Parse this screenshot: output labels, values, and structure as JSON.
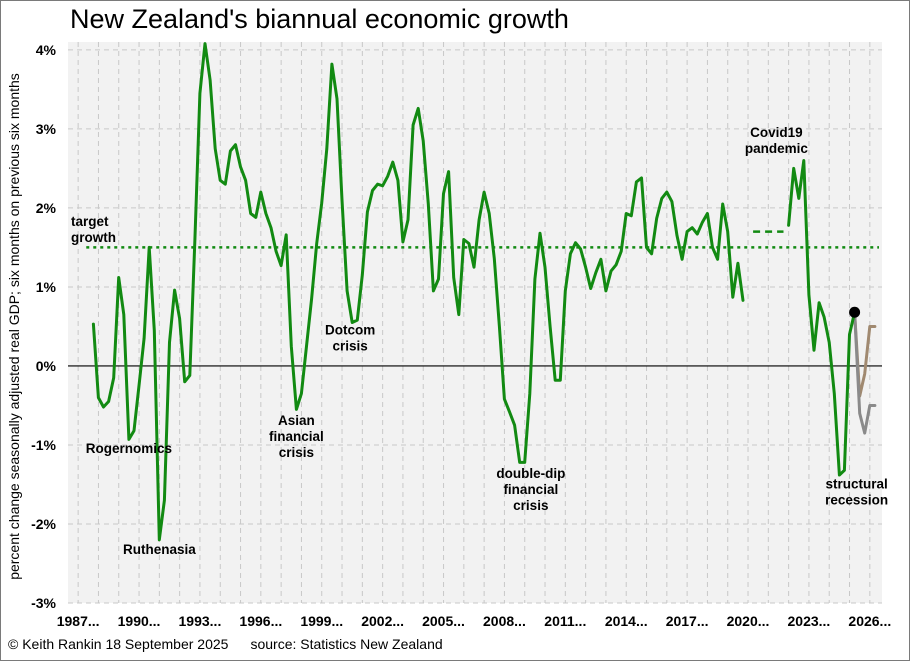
{
  "chart_data": {
    "type": "line",
    "title": "New Zealand's biannual economic growth",
    "ylabel": "percent change seasonally adjusted real GDP; six months on previous six months",
    "xlabel": "",
    "ylim": [
      -3,
      4.1
    ],
    "xlim": [
      1986.5,
      2026.6
    ],
    "y_ticks": [
      {
        "v": 4,
        "label": "4%"
      },
      {
        "v": 3,
        "label": "3%"
      },
      {
        "v": 2,
        "label": "2%"
      },
      {
        "v": 1,
        "label": "1%"
      },
      {
        "v": 0,
        "label": "0%"
      },
      {
        "v": -1,
        "label": "-1%"
      },
      {
        "v": -2,
        "label": "-2%"
      },
      {
        "v": -3,
        "label": "-3%"
      }
    ],
    "x_ticks": [
      {
        "v": 1987,
        "label": "1987..."
      },
      {
        "v": 1990,
        "label": "1990..."
      },
      {
        "v": 1993,
        "label": "1993..."
      },
      {
        "v": 1996,
        "label": "1996..."
      },
      {
        "v": 1999,
        "label": "1999..."
      },
      {
        "v": 2002,
        "label": "2002..."
      },
      {
        "v": 2005,
        "label": "2005..."
      },
      {
        "v": 2008,
        "label": "2008..."
      },
      {
        "v": 2011,
        "label": "2011..."
      },
      {
        "v": 2014,
        "label": "2014..."
      },
      {
        "v": 2017,
        "label": "2017..."
      },
      {
        "v": 2020,
        "label": "2020..."
      },
      {
        "v": 2023,
        "label": "2023..."
      },
      {
        "v": 2026,
        "label": "2026..."
      }
    ],
    "target_growth": {
      "value": 1.5,
      "label_lines": [
        "target",
        "growth"
      ]
    },
    "series": [
      {
        "name": "GDP growth (actual)",
        "color": "#128a12",
        "points": [
          [
            1987.75,
            0.53
          ],
          [
            1988.0,
            -0.4
          ],
          [
            1988.25,
            -0.52
          ],
          [
            1988.5,
            -0.45
          ],
          [
            1988.75,
            -0.15
          ],
          [
            1989.0,
            1.12
          ],
          [
            1989.25,
            0.65
          ],
          [
            1989.5,
            -0.93
          ],
          [
            1989.75,
            -0.82
          ],
          [
            1990.0,
            -0.25
          ],
          [
            1990.25,
            0.35
          ],
          [
            1990.5,
            1.5
          ],
          [
            1990.75,
            0.45
          ],
          [
            1991.0,
            -2.2
          ],
          [
            1991.25,
            -1.7
          ],
          [
            1991.5,
            0.3
          ],
          [
            1991.75,
            0.96
          ],
          [
            1992.0,
            0.6
          ],
          [
            1992.25,
            -0.2
          ],
          [
            1992.5,
            -0.12
          ],
          [
            1992.75,
            1.6
          ],
          [
            1993.0,
            3.45
          ],
          [
            1993.25,
            4.08
          ],
          [
            1993.5,
            3.62
          ],
          [
            1993.75,
            2.75
          ],
          [
            1994.0,
            2.35
          ],
          [
            1994.25,
            2.3
          ],
          [
            1994.5,
            2.72
          ],
          [
            1994.75,
            2.8
          ],
          [
            1995.0,
            2.52
          ],
          [
            1995.25,
            2.35
          ],
          [
            1995.5,
            1.93
          ],
          [
            1995.75,
            1.88
          ],
          [
            1996.0,
            2.2
          ],
          [
            1996.25,
            1.93
          ],
          [
            1996.5,
            1.75
          ],
          [
            1996.75,
            1.45
          ],
          [
            1997.0,
            1.27
          ],
          [
            1997.25,
            1.66
          ],
          [
            1997.5,
            0.25
          ],
          [
            1997.75,
            -0.55
          ],
          [
            1998.0,
            -0.35
          ],
          [
            1998.25,
            0.25
          ],
          [
            1998.5,
            0.85
          ],
          [
            1998.75,
            1.55
          ],
          [
            1999.0,
            2.06
          ],
          [
            1999.25,
            2.75
          ],
          [
            1999.5,
            3.82
          ],
          [
            1999.75,
            3.38
          ],
          [
            2000.0,
            2.1
          ],
          [
            2000.25,
            0.95
          ],
          [
            2000.5,
            0.55
          ],
          [
            2000.75,
            0.58
          ],
          [
            2001.0,
            1.15
          ],
          [
            2001.25,
            1.95
          ],
          [
            2001.5,
            2.22
          ],
          [
            2001.75,
            2.3
          ],
          [
            2002.0,
            2.28
          ],
          [
            2002.25,
            2.4
          ],
          [
            2002.5,
            2.58
          ],
          [
            2002.75,
            2.35
          ],
          [
            2003.0,
            1.57
          ],
          [
            2003.25,
            1.85
          ],
          [
            2003.5,
            3.05
          ],
          [
            2003.75,
            3.26
          ],
          [
            2004.0,
            2.85
          ],
          [
            2004.25,
            2.05
          ],
          [
            2004.5,
            0.95
          ],
          [
            2004.75,
            1.1
          ],
          [
            2005.0,
            2.18
          ],
          [
            2005.25,
            2.46
          ],
          [
            2005.5,
            1.12
          ],
          [
            2005.75,
            0.65
          ],
          [
            2006.0,
            1.6
          ],
          [
            2006.25,
            1.55
          ],
          [
            2006.5,
            1.25
          ],
          [
            2006.75,
            1.85
          ],
          [
            2007.0,
            2.2
          ],
          [
            2007.25,
            1.93
          ],
          [
            2007.5,
            1.36
          ],
          [
            2007.75,
            0.5
          ],
          [
            2008.0,
            -0.42
          ],
          [
            2008.25,
            -0.58
          ],
          [
            2008.5,
            -0.75
          ],
          [
            2008.75,
            -1.22
          ],
          [
            2009.0,
            -1.22
          ],
          [
            2009.25,
            -0.35
          ],
          [
            2009.5,
            1.1
          ],
          [
            2009.75,
            1.68
          ],
          [
            2010.0,
            1.25
          ],
          [
            2010.25,
            0.5
          ],
          [
            2010.5,
            -0.18
          ],
          [
            2010.75,
            -0.18
          ],
          [
            2011.0,
            0.95
          ],
          [
            2011.25,
            1.42
          ],
          [
            2011.5,
            1.56
          ],
          [
            2011.75,
            1.48
          ],
          [
            2012.0,
            1.25
          ],
          [
            2012.25,
            0.98
          ],
          [
            2012.5,
            1.18
          ],
          [
            2012.75,
            1.35
          ],
          [
            2013.0,
            0.95
          ],
          [
            2013.25,
            1.2
          ],
          [
            2013.5,
            1.28
          ],
          [
            2013.75,
            1.45
          ],
          [
            2014.0,
            1.93
          ],
          [
            2014.25,
            1.9
          ],
          [
            2014.5,
            2.33
          ],
          [
            2014.75,
            2.38
          ],
          [
            2015.0,
            1.5
          ],
          [
            2015.25,
            1.42
          ],
          [
            2015.5,
            1.87
          ],
          [
            2015.75,
            2.12
          ],
          [
            2016.0,
            2.2
          ],
          [
            2016.25,
            2.08
          ],
          [
            2016.5,
            1.65
          ],
          [
            2016.75,
            1.35
          ],
          [
            2017.0,
            1.7
          ],
          [
            2017.25,
            1.75
          ],
          [
            2017.5,
            1.67
          ],
          [
            2017.75,
            1.82
          ],
          [
            2018.0,
            1.93
          ],
          [
            2018.25,
            1.5
          ],
          [
            2018.5,
            1.35
          ],
          [
            2018.75,
            2.05
          ],
          [
            2019.0,
            1.7
          ],
          [
            2019.25,
            0.87
          ],
          [
            2019.5,
            1.3
          ],
          [
            2019.75,
            0.83
          ]
        ]
      },
      {
        "name": "GDP growth (post-Covid)",
        "color": "#128a12",
        "points": [
          [
            2022.0,
            1.78
          ],
          [
            2022.25,
            2.5
          ],
          [
            2022.5,
            2.12
          ],
          [
            2022.75,
            2.6
          ],
          [
            2023.0,
            0.9
          ],
          [
            2023.25,
            0.2
          ],
          [
            2023.5,
            0.8
          ],
          [
            2023.75,
            0.62
          ],
          [
            2024.0,
            0.3
          ],
          [
            2024.25,
            -0.35
          ],
          [
            2024.5,
            -1.38
          ],
          [
            2024.75,
            -1.32
          ],
          [
            2025.0,
            0.4
          ],
          [
            2025.25,
            0.68
          ]
        ]
      },
      {
        "name": "Covid19 gap",
        "color": "#128a12",
        "dashed": true,
        "points": [
          [
            2020.25,
            1.7
          ],
          [
            2021.75,
            1.7
          ]
        ]
      },
      {
        "name": "scenario (brown)",
        "color": "#a08970",
        "points": [
          [
            2025.25,
            0.68
          ],
          [
            2025.5,
            -0.38
          ],
          [
            2025.75,
            -0.1
          ],
          [
            2026.0,
            0.5
          ],
          [
            2026.25,
            0.5
          ]
        ]
      },
      {
        "name": "scenario (grey)",
        "color": "#8a8a8a",
        "points": [
          [
            2025.25,
            0.68
          ],
          [
            2025.5,
            -0.6
          ],
          [
            2025.75,
            -0.85
          ],
          [
            2026.0,
            -0.5
          ],
          [
            2026.25,
            -0.5
          ]
        ]
      }
    ],
    "marker": {
      "x": 2025.25,
      "y": 0.68,
      "color": "#000000"
    },
    "annotations": [
      {
        "id": "rogernomics",
        "lines": [
          "Rogernomics"
        ],
        "x": 1989.5,
        "y": -1.1
      },
      {
        "id": "ruthenasia",
        "lines": [
          "Ruthenasia"
        ],
        "x": 1991.0,
        "y": -2.38
      },
      {
        "id": "asian",
        "lines": [
          "Asian",
          "financial",
          "crisis"
        ],
        "x": 1997.75,
        "y": -0.75
      },
      {
        "id": "dotcom",
        "lines": [
          "Dotcom",
          "crisis"
        ],
        "x": 2000.4,
        "y": 0.4
      },
      {
        "id": "doubledip",
        "lines": [
          "double-dip",
          "financial",
          "crisis"
        ],
        "x": 2009.3,
        "y": -1.42
      },
      {
        "id": "covid",
        "lines": [
          "Covid19",
          "pandemic"
        ],
        "x": 2021.4,
        "y": 2.9
      },
      {
        "id": "structural",
        "lines": [
          "structural",
          "recession"
        ],
        "x": 2025.35,
        "y": -1.55
      }
    ]
  },
  "footer": {
    "credit": "© Keith Rankin 18 September 2025",
    "source": "source: Statistics New Zealand"
  }
}
